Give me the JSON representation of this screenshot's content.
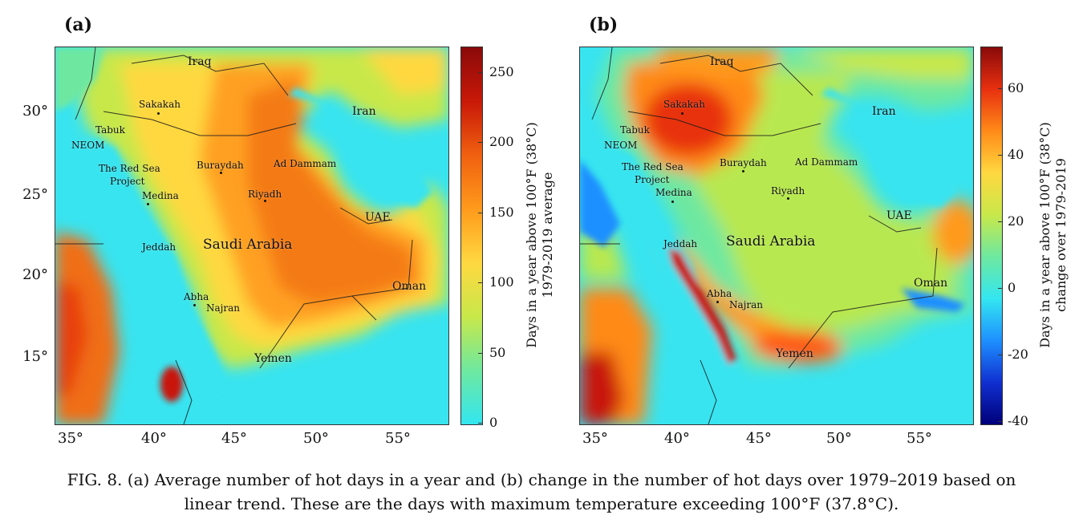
{
  "panels": [
    {
      "label": "(a)",
      "colorbar": {
        "title_line1": "Days in a year above 100°F (38°C)",
        "title_line2": "1979-2019 average",
        "ticks": [
          "250",
          "200",
          "150",
          "100",
          "50",
          "0"
        ],
        "range": [
          0,
          270
        ],
        "colors": [
          "#33e6f0",
          "#6ee8a0",
          "#c8e84a",
          "#ffd840",
          "#ff9a1c",
          "#f06010",
          "#c81808",
          "#8a0a0a"
        ]
      },
      "places": {
        "iraq": "Iraq",
        "iran": "Iran",
        "sakakah": "Sakakah",
        "tabuk": "Tabuk",
        "neom": "NEOM",
        "red_sea": "The Red Sea",
        "project": "Project",
        "medina": "Medina",
        "buraydah": "Buraydah",
        "ad_dammam": "Ad Dammam",
        "riyadh": "Riyadh",
        "uae": "UAE",
        "saudi_arabia": "Saudi Arabia",
        "jeddah": "Jeddah",
        "oman": "Oman",
        "abha": "Abha",
        "najran": "Najran",
        "yemen": "Yemen"
      }
    },
    {
      "label": "(b)",
      "colorbar": {
        "title_line1": "Days in a year above 100°F (38°C)",
        "title_line2": "change over 1979-2019",
        "ticks": [
          "60",
          "40",
          "20",
          "0",
          "-20",
          "-40"
        ],
        "range": [
          -40,
          72
        ],
        "colors": [
          "#00007a",
          "#1030d0",
          "#1e90ff",
          "#33e6f0",
          "#6ee8a0",
          "#c8e84a",
          "#ffd840",
          "#ff8a18",
          "#e83010",
          "#8a0a0a"
        ]
      },
      "places": {
        "iraq": "Iraq",
        "iran": "Iran",
        "sakakah": "Sakakah",
        "tabuk": "Tabuk",
        "neom": "NEOM",
        "red_sea": "The Red Sea",
        "project": "Project",
        "medina": "Medina",
        "buraydah": "Buraydah",
        "ad_dammam": "Ad Dammam",
        "riyadh": "Riyadh",
        "uae": "UAE",
        "saudi_arabia": "Saudi Arabia",
        "jeddah": "Jeddah",
        "oman": "Oman",
        "abha": "Abha",
        "najran": "Najran",
        "yemen": "Yemen"
      }
    }
  ],
  "axes": {
    "lat_ticks": [
      "30°",
      "25°",
      "20°",
      "15°"
    ],
    "lon_ticks": [
      "35°",
      "40°",
      "45°",
      "50°",
      "55°"
    ]
  },
  "caption": {
    "line1": "FIG. 8. (a) Average number of hot days in a year and (b) change in the number of hot days over 1979–2019 based on",
    "line2": "linear trend. These are the days with maximum temperature exceeding 100°F (37.8°C)."
  }
}
